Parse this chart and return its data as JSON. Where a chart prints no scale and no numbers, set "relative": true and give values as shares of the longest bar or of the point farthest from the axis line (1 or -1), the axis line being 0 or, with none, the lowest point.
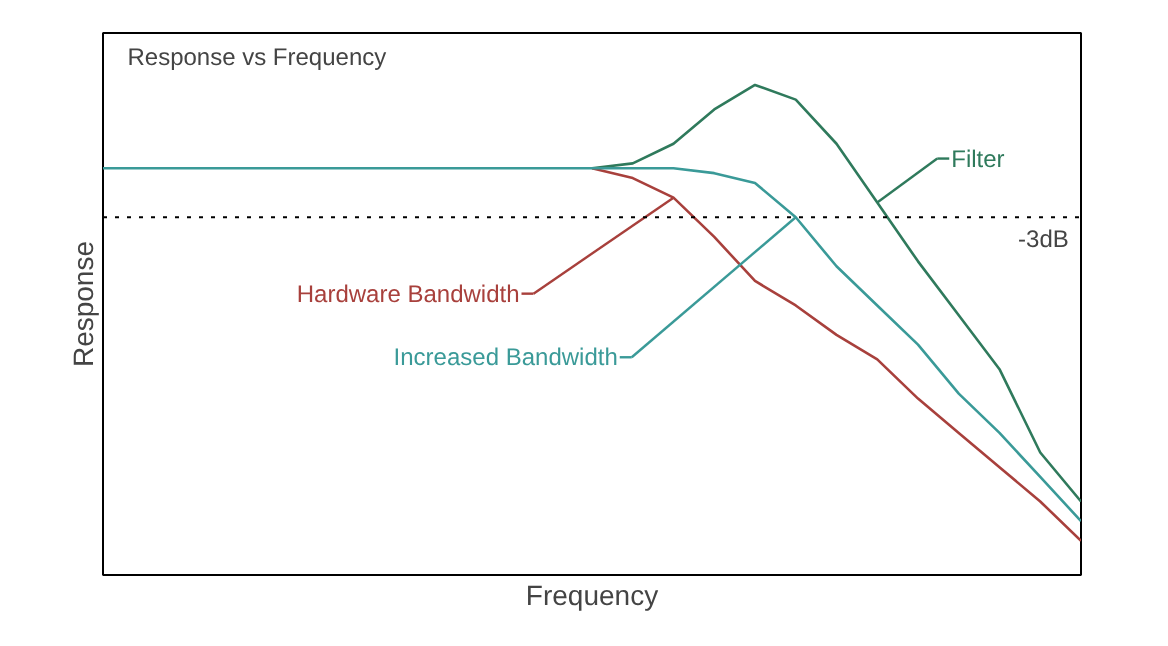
{
  "chart_data": {
    "type": "line",
    "relative": true,
    "title": "Response vs Frequency",
    "xlabel": "Frequency",
    "ylabel": "Response",
    "categories": [
      null,
      null,
      null,
      null,
      null,
      null,
      null,
      null,
      null,
      null,
      null,
      null,
      null,
      null,
      null,
      null,
      null,
      null,
      null,
      null,
      null,
      null,
      null,
      null,
      null
    ],
    "series": [
      {
        "name": "Filter",
        "color": "#2f7a5c",
        "values": [
          null,
          null,
          null,
          null,
          null,
          null,
          null,
          null,
          null,
          null,
          null,
          null,
          0.83,
          0.84,
          0.88,
          0.95,
          1.0,
          0.97,
          0.88,
          0.76,
          0.64,
          0.53,
          0.42,
          0.25,
          0.15
        ]
      },
      {
        "name": "Hardware Bandwidth",
        "color": "#a8403c",
        "values": [
          null,
          null,
          null,
          null,
          null,
          null,
          null,
          null,
          null,
          null,
          null,
          null,
          0.83,
          0.81,
          0.77,
          0.69,
          0.6,
          0.55,
          0.49,
          0.44,
          0.36,
          0.29,
          0.22,
          0.15,
          0.07
        ]
      },
      {
        "name": "Increased Bandwidth",
        "color": "#3a9a98",
        "values": [
          0.83,
          0.83,
          0.83,
          0.83,
          0.83,
          0.83,
          0.83,
          0.83,
          0.83,
          0.83,
          0.83,
          0.83,
          0.83,
          0.83,
          0.83,
          0.82,
          0.8,
          0.73,
          0.63,
          0.55,
          0.47,
          0.37,
          0.29,
          0.2,
          0.11
        ]
      }
    ],
    "ref_lines": [
      {
        "axis": "y",
        "value": 0.73,
        "label": "-3dB",
        "color": "#000000",
        "line_style": "dotted"
      }
    ],
    "legend": "center",
    "marker": "none",
    "line_style": "solid"
  }
}
